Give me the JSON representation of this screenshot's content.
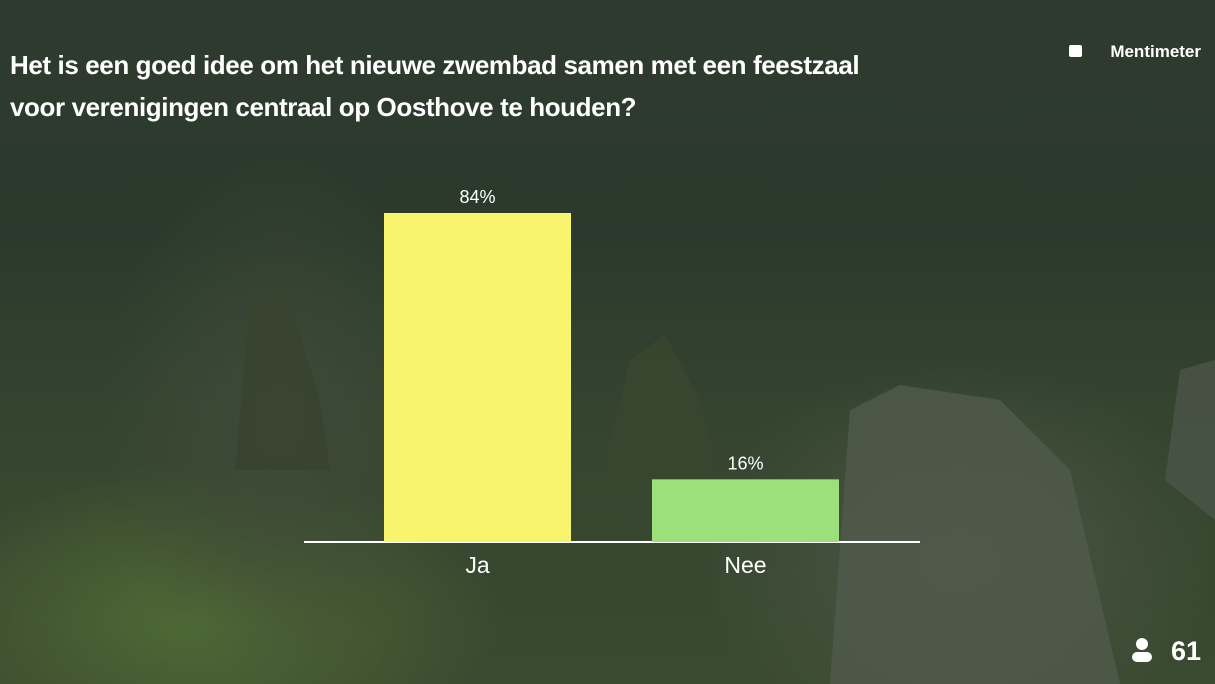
{
  "chart_data": {
    "type": "bar",
    "title": "Het is een goed idee om het nieuwe zwembad samen met een feestzaal voor verenigingen centraal op Oosthove te houden?",
    "categories": [
      "Ja",
      "Nee"
    ],
    "values": [
      84,
      16
    ],
    "value_labels": [
      "84%",
      "16%"
    ],
    "colors": [
      "#f8f56c",
      "#9ce07c"
    ]
  },
  "brand": "Mentimeter",
  "participants": 61
}
